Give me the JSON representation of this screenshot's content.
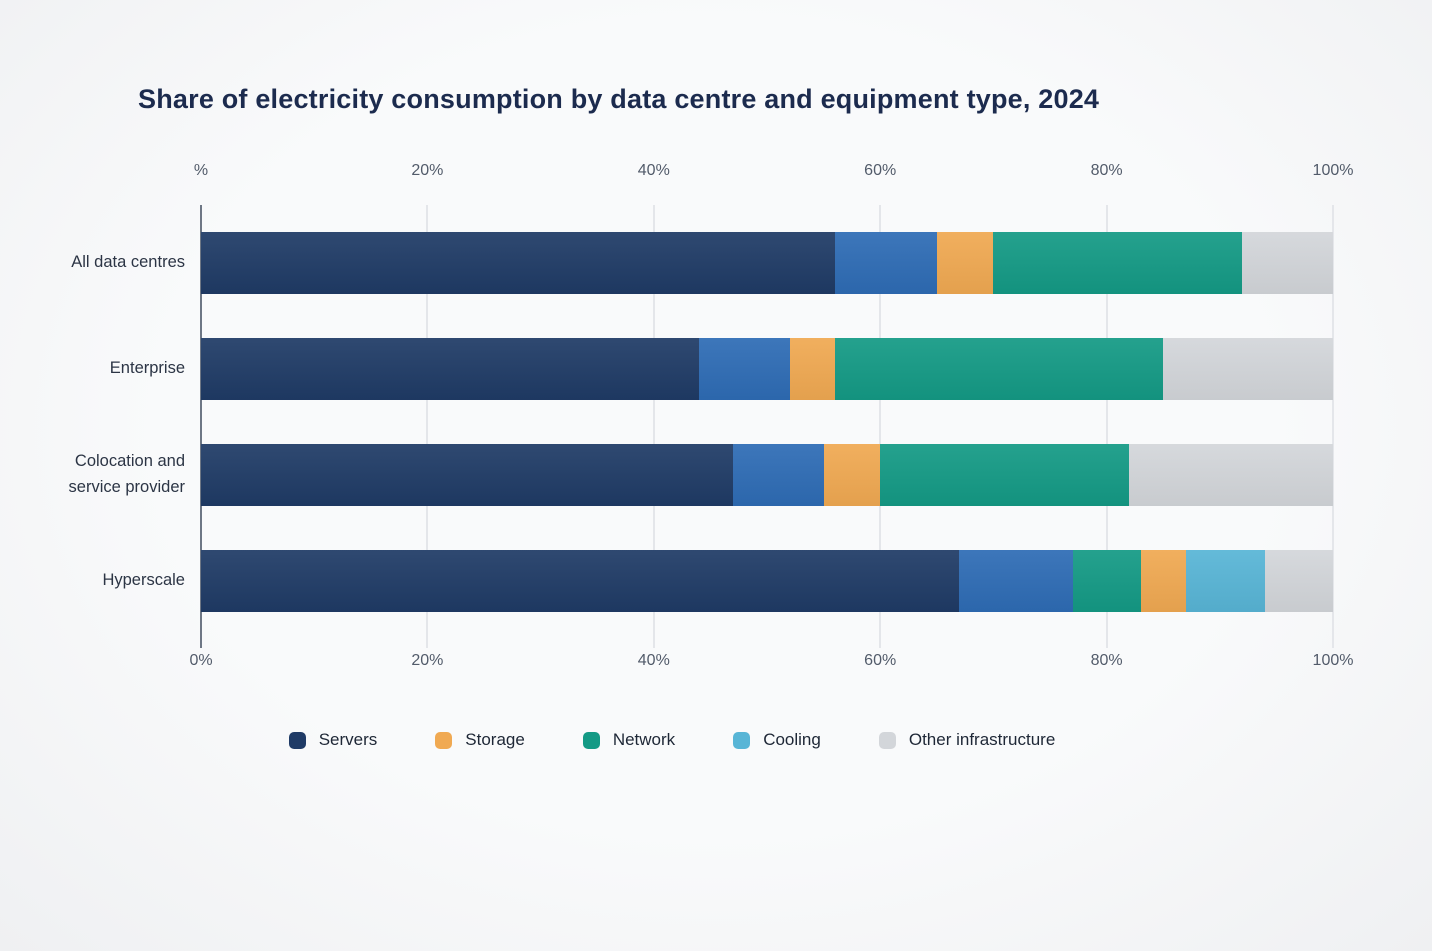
{
  "title": "Share of electricity consumption by data centre and equipment type, 2024",
  "chart_data": {
    "type": "bar",
    "variant": "horizontal-stacked",
    "title": "Share of electricity consumption by data centre and equipment type, 2024",
    "x_axis": {
      "min": 0,
      "max": 100,
      "tick_values": [
        0,
        20,
        40,
        60,
        80,
        100
      ],
      "top_tick_labels": [
        "%",
        "20%",
        "40%",
        "60%",
        "80%",
        "100%"
      ],
      "bottom_tick_labels": [
        "0%",
        "20%",
        "40%",
        "60%",
        "80%",
        "100%"
      ],
      "grid": true
    },
    "legend": {
      "position": "bottom",
      "items": [
        {
          "label": "Servers",
          "color": "#1f3b66"
        },
        {
          "label": "Storage",
          "color": "#f0a952"
        },
        {
          "label": "Network",
          "color": "#149a85"
        },
        {
          "label": "Cooling",
          "color": "#58b5d6"
        },
        {
          "label": "Other infrastructure",
          "color": "#d3d6da"
        }
      ]
    },
    "categories": [
      "All data centres",
      "Enterprise",
      "Colocation and service provider",
      "Hyperscale"
    ],
    "rows": [
      {
        "category": "All data centres",
        "label_lines": [
          "All data centres"
        ],
        "segments": [
          {
            "series": "Servers",
            "color": "#1f3b66",
            "value": 56
          },
          {
            "series": "Cooling",
            "color": "#2e6cb5",
            "value": 9
          },
          {
            "series": "Storage",
            "color": "#f0a952",
            "value": 5
          },
          {
            "series": "Network",
            "color": "#149a85",
            "value": 22
          },
          {
            "series": "Other infrastructure",
            "color": "#d3d6da",
            "value": 8
          }
        ]
      },
      {
        "category": "Enterprise",
        "label_lines": [
          "Enterprise"
        ],
        "segments": [
          {
            "series": "Servers",
            "color": "#1f3b66",
            "value": 44
          },
          {
            "series": "Cooling",
            "color": "#2e6cb5",
            "value": 8
          },
          {
            "series": "Storage",
            "color": "#f0a952",
            "value": 4
          },
          {
            "series": "Network",
            "color": "#149a85",
            "value": 29
          },
          {
            "series": "Other infrastructure",
            "color": "#d3d6da",
            "value": 15
          }
        ]
      },
      {
        "category": "Colocation and service provider",
        "label_lines": [
          "Colocation and",
          "service provider"
        ],
        "segments": [
          {
            "series": "Servers",
            "color": "#1f3b66",
            "value": 47
          },
          {
            "series": "Cooling",
            "color": "#2e6cb5",
            "value": 8
          },
          {
            "series": "Storage",
            "color": "#f0a952",
            "value": 5
          },
          {
            "series": "Network",
            "color": "#149a85",
            "value": 22
          },
          {
            "series": "Other infrastructure",
            "color": "#d3d6da",
            "value": 18
          }
        ]
      },
      {
        "category": "Hyperscale",
        "label_lines": [
          "Hyperscale"
        ],
        "segments": [
          {
            "series": "Servers",
            "color": "#1f3b66",
            "value": 67
          },
          {
            "series": "Cooling",
            "color": "#2e6cb5",
            "value": 10
          },
          {
            "series": "Network",
            "color": "#149a85",
            "value": 6
          },
          {
            "series": "Storage",
            "color": "#f0a952",
            "value": 4
          },
          {
            "series": "Cooling",
            "color": "#58b5d6",
            "value": 7
          },
          {
            "series": "Other infrastructure",
            "color": "#d3d6da",
            "value": 6
          }
        ]
      }
    ]
  }
}
